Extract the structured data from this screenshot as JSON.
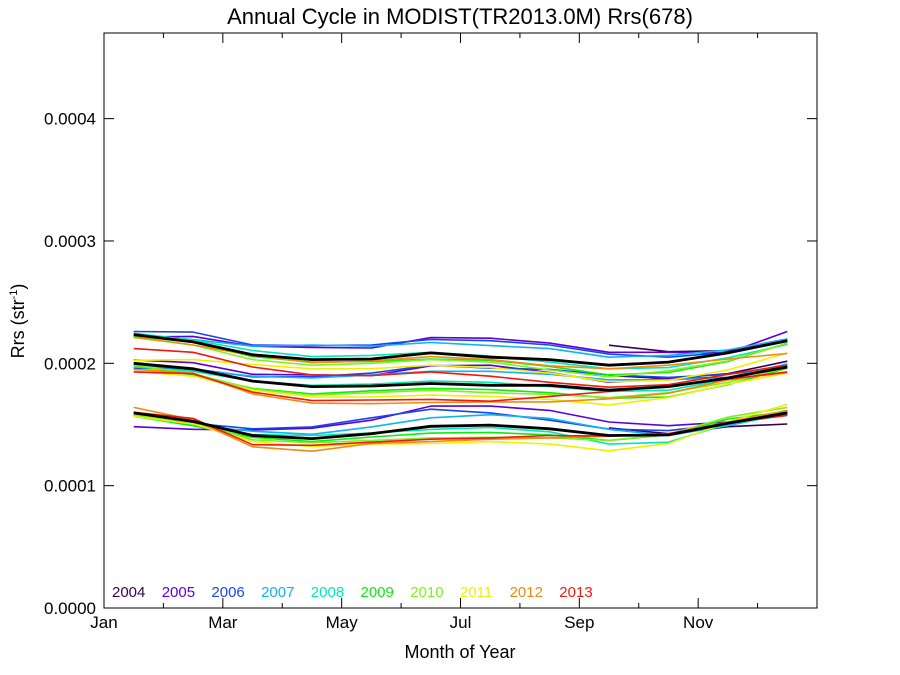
{
  "chart_data": {
    "type": "line",
    "title": "Annual Cycle in MODIST(TR2013.0M) Rrs(678)",
    "xlabel": "Month of Year",
    "ylabel": {
      "base": "Rrs (str",
      "sup": "-1",
      "end": ")"
    },
    "xlim": [
      0,
      12
    ],
    "ylim": [
      0,
      0.00047
    ],
    "x_ticks": [
      {
        "value": 0,
        "label": "Jan"
      },
      {
        "value": 2,
        "label": "Mar"
      },
      {
        "value": 4,
        "label": "May"
      },
      {
        "value": 6,
        "label": "Jul"
      },
      {
        "value": 8,
        "label": "Sep"
      },
      {
        "value": 10,
        "label": "Nov"
      }
    ],
    "y_ticks": [
      {
        "value": 0,
        "label": "0.0000"
      },
      {
        "value": 0.0001,
        "label": "0.0001"
      },
      {
        "value": 0.0002,
        "label": "0.0002"
      },
      {
        "value": 0.0003,
        "label": "0.0003"
      },
      {
        "value": 0.0004,
        "label": "0.0004"
      }
    ],
    "x": [
      0.5,
      1.5,
      2.5,
      3.5,
      4.5,
      5.5,
      6.5,
      7.5,
      8.5,
      9.5,
      10.5,
      11.5
    ],
    "series": [
      {
        "name": "2004",
        "color": "#3a0050",
        "groups": [
          [
            null,
            null,
            null,
            null,
            null,
            null,
            null,
            null,
            0.0002148,
            0.0002095,
            0.0002103,
            0.000219
          ],
          [
            null,
            null,
            null,
            null,
            null,
            null,
            null,
            null,
            0.00019,
            0.0001875,
            0.0001915,
            0.0002017
          ],
          [
            null,
            null,
            null,
            null,
            null,
            null,
            null,
            null,
            0.0001472,
            0.0001425,
            0.0001482,
            0.0001504
          ]
        ]
      },
      {
        "name": "2005",
        "color": "#5a00dd",
        "groups": [
          [
            0.0002215,
            0.000222,
            0.000214,
            0.000213,
            0.0002125,
            0.000221,
            0.0002205,
            0.0002165,
            0.000209,
            0.000209,
            0.0002085,
            0.000226
          ],
          [
            0.0002028,
            0.0002005,
            0.000191,
            0.0001905,
            0.00019,
            0.000198,
            0.0001985,
            0.0001925,
            0.0001845,
            0.0001875,
            0.0001885,
            0.0001975
          ],
          [
            0.0001482,
            0.0001461,
            0.0001455,
            0.000147,
            0.0001535,
            0.000165,
            0.000165,
            0.0001615,
            0.000152,
            0.000149,
            0.000152,
            0.00016
          ]
        ]
      },
      {
        "name": "2006",
        "color": "#1844ee",
        "groups": [
          [
            0.000226,
            0.0002255,
            0.000215,
            0.0002145,
            0.000215,
            0.0002195,
            0.0002185,
            0.000215,
            0.0002075,
            0.000205,
            0.000209,
            0.000218
          ],
          [
            0.000196,
            0.0001955,
            0.000189,
            0.000189,
            0.000192,
            0.0001985,
            0.000196,
            0.000195,
            0.0001905,
            0.0001885,
            0.000191,
            0.0001975
          ],
          [
            0.000158,
            0.000151,
            0.0001465,
            0.000148,
            0.0001555,
            0.0001625,
            0.0001595,
            0.0001535,
            0.0001462,
            0.000145,
            0.0001505,
            0.0001605
          ]
        ]
      },
      {
        "name": "2007",
        "color": "#10b2f2",
        "groups": [
          [
            0.0002225,
            0.0002195,
            0.000214,
            0.000215,
            0.000214,
            0.000217,
            0.0002145,
            0.000212,
            0.000205,
            0.0002065,
            0.000211,
            0.00022
          ],
          [
            0.000199,
            0.0001945,
            0.0001895,
            0.000188,
            0.0001905,
            0.0001935,
            0.0001935,
            0.000191,
            0.0001865,
            0.0001865,
            0.0001885,
            0.0001995
          ],
          [
            0.000158,
            0.0001492,
            0.0001445,
            0.000142,
            0.000148,
            0.0001555,
            0.000158,
            0.000155,
            0.000146,
            0.000141,
            0.000149,
            0.000159
          ]
        ]
      },
      {
        "name": "2008",
        "color": "#00e8b8",
        "groups": [
          [
            0.0002245,
            0.000219,
            0.0002105,
            0.0002055,
            0.0002065,
            0.000209,
            0.000206,
            0.000201,
            0.0001955,
            0.0001965,
            0.0002045,
            0.0002155
          ],
          [
            0.000197,
            0.0001935,
            0.0001855,
            0.000182,
            0.000183,
            0.0001855,
            0.0001845,
            0.000181,
            0.000177,
            0.000178,
            0.000187,
            0.000198
          ],
          [
            0.0001565,
            0.000149,
            0.0001418,
            0.000141,
            0.000143,
            0.000146,
            0.0001475,
            0.000144,
            0.000134,
            0.0001355,
            0.0001505,
            0.0001575
          ]
        ]
      },
      {
        "name": "2009",
        "color": "#10ea10",
        "groups": [
          [
            0.0002225,
            0.000217,
            0.0002055,
            0.000201,
            0.0002015,
            0.0002035,
            0.0002025,
            0.0001975,
            0.0001905,
            0.0001925,
            0.0002015,
            0.0002165
          ],
          [
            0.0001985,
            0.0001905,
            0.0001795,
            0.000175,
            0.0001775,
            0.0001795,
            0.0001785,
            0.000176,
            0.0001715,
            0.0001725,
            0.0001825,
            0.000196
          ],
          [
            0.000157,
            0.000149,
            0.0001395,
            0.000136,
            0.0001398,
            0.000143,
            0.0001435,
            0.0001415,
            0.000137,
            0.0001415,
            0.0001545,
            0.0001605
          ]
        ]
      },
      {
        "name": "2010",
        "color": "#80f020",
        "groups": [
          [
            0.000221,
            0.000215,
            0.000203,
            0.0001985,
            0.0002,
            0.000203,
            0.000201,
            0.0001945,
            0.000189,
            0.000194,
            0.000202,
            0.0002165
          ],
          [
            0.0001985,
            0.0001915,
            0.000179,
            0.000174,
            0.000176,
            0.000178,
            0.000176,
            0.0001745,
            0.000172,
            0.000176,
            0.0001845,
            0.0001965
          ],
          [
            0.0001575,
            0.000152,
            0.0001375,
            0.000135,
            0.000137,
            0.000139,
            0.0001395,
            0.000139,
            0.000137,
            0.000142,
            0.000156,
            0.000164
          ]
        ]
      },
      {
        "name": "2011",
        "color": "#f0f000",
        "groups": [
          [
            0.0002025,
            0.000203,
            0.000199,
            0.0001955,
            0.0001955,
            0.0001985,
            0.0001965,
            0.000192,
            0.000185,
            0.000186,
            0.0001945,
            0.0002085
          ],
          [
            0.0001935,
            0.0001895,
            0.000178,
            0.0001725,
            0.0001725,
            0.000174,
            0.000173,
            0.0001705,
            0.000166,
            0.000172,
            0.000183,
            0.000192
          ],
          [
            0.0001565,
            0.0001505,
            0.000136,
            0.000132,
            0.000134,
            0.0001345,
            0.000136,
            0.000134,
            0.0001285,
            0.0001345,
            0.000152,
            0.0001665
          ]
        ]
      },
      {
        "name": "2012",
        "color": "#f08a10",
        "groups": [
          [
            0.0002215,
            0.000215,
            0.0002065,
            0.0002005,
            0.000202,
            0.0002055,
            0.000203,
            0.000198,
            0.0001955,
            0.0001985,
            0.0002035,
            0.000208
          ],
          [
            0.000195,
            0.000192,
            0.000175,
            0.0001675,
            0.000167,
            0.000168,
            0.0001685,
            0.0001685,
            0.000171,
            0.0001755,
            0.0001865,
            0.0001925
          ],
          [
            0.000164,
            0.0001538,
            0.0001318,
            0.0001282,
            0.0001345,
            0.000136,
            0.000138,
            0.000139,
            0.0001405,
            0.0001425,
            0.000152,
            0.0001615
          ]
        ]
      },
      {
        "name": "2013",
        "color": "#f01810",
        "groups": [
          [
            0.000212,
            0.000209,
            0.000197,
            0.0001905,
            0.00019,
            0.000193,
            0.0001895,
            0.0001845,
            0.0001805,
            0.0001825,
            0.000191,
            0.0001985
          ],
          [
            0.000193,
            0.0001915,
            0.0001765,
            0.0001695,
            0.00017,
            0.0001705,
            0.000169,
            0.000173,
            0.000177,
            0.0001815,
            0.000187,
            0.000193
          ],
          [
            0.00016,
            0.000155,
            0.0001335,
            0.000133,
            0.0001355,
            0.000138,
            0.000139,
            0.000141,
            0.0001405,
            0.0001425,
            0.0001515,
            0.0001575
          ]
        ]
      }
    ],
    "mean_series": {
      "color": "#000000",
      "groups": [
        [
          0.0002235,
          0.0002175,
          0.000207,
          0.000203,
          0.0002035,
          0.0002085,
          0.000205,
          0.000203,
          0.0001985,
          0.000201,
          0.0002085,
          0.0002185
        ],
        [
          0.0002,
          0.0001955,
          0.0001855,
          0.000181,
          0.0001815,
          0.0001835,
          0.000182,
          0.000182,
          0.000178,
          0.000181,
          0.000188,
          0.000197
        ],
        [
          0.0001595,
          0.0001525,
          0.000141,
          0.0001385,
          0.0001425,
          0.0001485,
          0.0001495,
          0.0001465,
          0.000141,
          0.0001415,
          0.000151,
          0.0001595
        ]
      ]
    },
    "grid": false,
    "legend": "bottom-left"
  }
}
